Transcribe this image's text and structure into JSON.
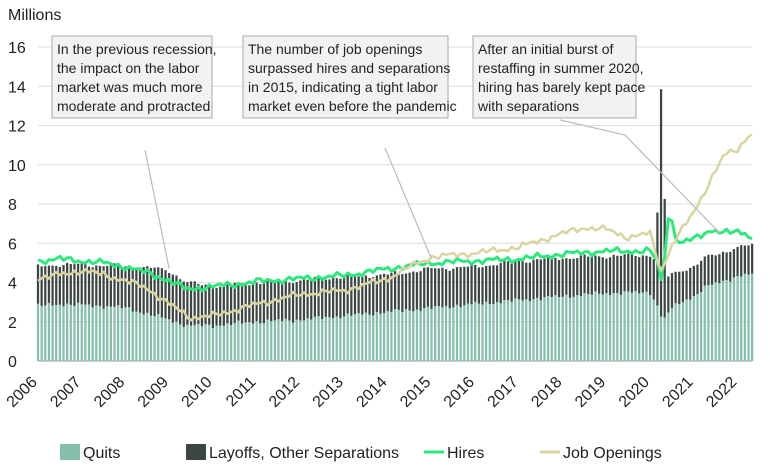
{
  "chart_data": {
    "type": "bar",
    "unit_label": "Millions",
    "ylim": [
      0,
      16
    ],
    "y_ticks": [
      0,
      2,
      4,
      6,
      8,
      10,
      12,
      14,
      16
    ],
    "x_range": [
      2006.0,
      2022.33
    ],
    "x_ticks": [
      "2006",
      "2007",
      "2008",
      "2009",
      "2010",
      "2011",
      "2012",
      "2013",
      "2014",
      "2015",
      "2016",
      "2017",
      "2018",
      "2019",
      "2020",
      "2021",
      "2022"
    ],
    "grid": "horizontal",
    "legend_position": "bottom",
    "colors": {
      "quits": "#86bfa9",
      "layoffs": "#3c4744",
      "hires": "#2ee87e",
      "openings": "#d9d4a0",
      "note_border": "#aaaaaa",
      "note_bg": "#f2f2f2"
    },
    "series": [
      {
        "name": "Quits",
        "kind": "bar",
        "color_key": "quits",
        "points": [
          [
            2006.0,
            2.8
          ],
          [
            2006.5,
            2.9
          ],
          [
            2007.0,
            2.85
          ],
          [
            2007.5,
            2.8
          ],
          [
            2008.0,
            2.7
          ],
          [
            2008.5,
            2.4
          ],
          [
            2009.0,
            2.1
          ],
          [
            2009.4,
            1.8
          ],
          [
            2010.0,
            1.8
          ],
          [
            2011.0,
            2.0
          ],
          [
            2012.0,
            2.1
          ],
          [
            2013.0,
            2.3
          ],
          [
            2014.0,
            2.5
          ],
          [
            2015.0,
            2.7
          ],
          [
            2016.0,
            2.9
          ],
          [
            2017.0,
            3.1
          ],
          [
            2018.0,
            3.3
          ],
          [
            2019.0,
            3.45
          ],
          [
            2020.0,
            3.5
          ],
          [
            2020.15,
            2.9
          ],
          [
            2020.3,
            2.0
          ],
          [
            2020.45,
            2.6
          ],
          [
            2020.7,
            3.0
          ],
          [
            2021.0,
            3.3
          ],
          [
            2021.3,
            3.8
          ],
          [
            2021.7,
            4.1
          ],
          [
            2022.0,
            4.3
          ],
          [
            2022.25,
            4.4
          ]
        ]
      },
      {
        "name": "Layoffs, Other Separations",
        "kind": "bar",
        "color_key": "layoffs",
        "points": [
          [
            2006.0,
            2.0
          ],
          [
            2007.0,
            2.05
          ],
          [
            2008.0,
            2.1
          ],
          [
            2008.6,
            2.4
          ],
          [
            2009.0,
            2.5
          ],
          [
            2009.4,
            2.2
          ],
          [
            2010.0,
            2.0
          ],
          [
            2011.0,
            2.0
          ],
          [
            2012.0,
            2.0
          ],
          [
            2013.0,
            2.0
          ],
          [
            2014.0,
            1.9
          ],
          [
            2015.0,
            2.0
          ],
          [
            2016.0,
            1.9
          ],
          [
            2017.0,
            2.0
          ],
          [
            2018.0,
            1.95
          ],
          [
            2019.0,
            1.9
          ],
          [
            2020.0,
            1.9
          ],
          [
            2020.15,
            2.2
          ],
          [
            2020.22,
            12.9
          ],
          [
            2020.3,
            9.0
          ],
          [
            2020.38,
            1.9
          ],
          [
            2020.55,
            1.7
          ],
          [
            2021.0,
            1.5
          ],
          [
            2021.5,
            1.5
          ],
          [
            2022.0,
            1.45
          ],
          [
            2022.25,
            1.5
          ]
        ]
      },
      {
        "name": "Hires",
        "kind": "line",
        "color_key": "hires",
        "points": [
          [
            2006.0,
            5.1
          ],
          [
            2006.5,
            5.2
          ],
          [
            2007.0,
            5.1
          ],
          [
            2007.5,
            5.0
          ],
          [
            2008.0,
            4.8
          ],
          [
            2008.5,
            4.5
          ],
          [
            2009.0,
            4.1
          ],
          [
            2009.4,
            3.65
          ],
          [
            2010.0,
            3.8
          ],
          [
            2010.5,
            3.9
          ],
          [
            2011.0,
            4.05
          ],
          [
            2012.0,
            4.2
          ],
          [
            2013.0,
            4.35
          ],
          [
            2014.0,
            4.7
          ],
          [
            2015.0,
            5.0
          ],
          [
            2016.0,
            5.1
          ],
          [
            2017.0,
            5.2
          ],
          [
            2018.0,
            5.45
          ],
          [
            2019.0,
            5.6
          ],
          [
            2020.0,
            5.6
          ],
          [
            2020.2,
            4.9
          ],
          [
            2020.28,
            3.8
          ],
          [
            2020.38,
            6.5
          ],
          [
            2020.45,
            8.0
          ],
          [
            2020.6,
            6.0
          ],
          [
            2021.0,
            6.2
          ],
          [
            2021.4,
            6.7
          ],
          [
            2021.8,
            6.5
          ],
          [
            2022.0,
            6.6
          ],
          [
            2022.25,
            6.4
          ]
        ]
      },
      {
        "name": "Job Openings",
        "kind": "line",
        "color_key": "openings",
        "points": [
          [
            2006.0,
            4.2
          ],
          [
            2006.5,
            4.4
          ],
          [
            2007.0,
            4.6
          ],
          [
            2007.5,
            4.4
          ],
          [
            2008.0,
            4.1
          ],
          [
            2008.5,
            3.7
          ],
          [
            2009.0,
            2.9
          ],
          [
            2009.5,
            2.2
          ],
          [
            2010.0,
            2.3
          ],
          [
            2011.0,
            2.9
          ],
          [
            2012.0,
            3.4
          ],
          [
            2013.0,
            3.6
          ],
          [
            2014.0,
            4.2
          ],
          [
            2014.5,
            4.8
          ],
          [
            2015.0,
            5.3
          ],
          [
            2016.0,
            5.5
          ],
          [
            2017.0,
            5.8
          ],
          [
            2018.0,
            6.5
          ],
          [
            2018.5,
            6.8
          ],
          [
            2019.0,
            6.7
          ],
          [
            2019.5,
            6.3
          ],
          [
            2020.0,
            6.5
          ],
          [
            2020.25,
            4.6
          ],
          [
            2020.5,
            5.9
          ],
          [
            2021.0,
            7.6
          ],
          [
            2021.4,
            9.3
          ],
          [
            2021.7,
            10.5
          ],
          [
            2022.0,
            10.8
          ],
          [
            2022.25,
            11.5
          ]
        ]
      }
    ],
    "annotations": [
      {
        "lines": [
          "In the previous recession,",
          "the impact on the labor",
          "market was much more",
          "moderate and protracted"
        ],
        "target": [
          2009.0,
          4.7
        ]
      },
      {
        "lines": [
          "The number of job openings",
          "surpassed hires and separations",
          "in 2015, indicating a tight labor",
          "market even before the pandemic"
        ],
        "target": [
          2015.0,
          5.2
        ]
      },
      {
        "lines": [
          "After an initial burst of",
          "restaffing in summer 2020,",
          "hiring has barely kept pace",
          "with separations"
        ],
        "target": [
          2021.6,
          6.5
        ]
      }
    ]
  }
}
